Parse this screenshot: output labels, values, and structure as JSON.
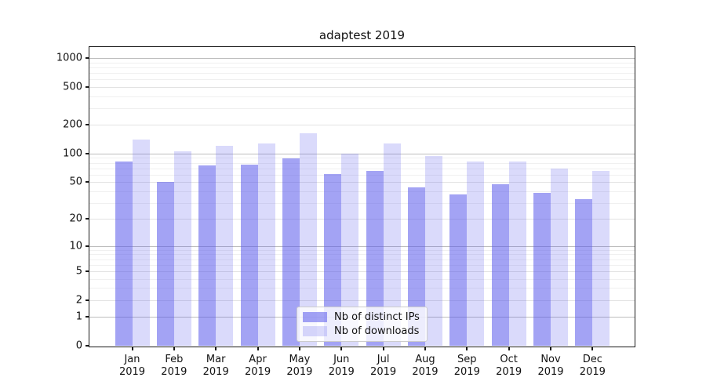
{
  "title": "adaptest 2019",
  "legend": {
    "items": [
      {
        "label": "Nb of distinct IPs"
      },
      {
        "label": "Nb of downloads"
      }
    ]
  },
  "axis": {
    "y_tick_values": [
      0,
      1,
      2,
      5,
      10,
      20,
      50,
      100,
      200,
      500,
      1000
    ],
    "y_major_values": [
      1,
      10,
      100,
      1000
    ]
  },
  "colors": {
    "bar_distinct_ips": "rgba(88,88,235,0.55)",
    "bar_downloads": "rgba(88,88,235,0.22)",
    "grid_major": "#bdbdbd",
    "grid_minor": "#f0f0f0"
  },
  "chart_data": {
    "type": "bar",
    "title": "adaptest 2019",
    "categories": [
      "Jan 2019",
      "Feb 2019",
      "Mar 2019",
      "Apr 2019",
      "May 2019",
      "Jun 2019",
      "Jul 2019",
      "Aug 2019",
      "Sep 2019",
      "Oct 2019",
      "Nov 2019",
      "Dec 2019"
    ],
    "series": [
      {
        "name": "Nb of distinct IPs",
        "color": "rgba(88,88,235,0.55)",
        "values": [
          82,
          50,
          75,
          77,
          89,
          61,
          66,
          44,
          37,
          47,
          38,
          33
        ]
      },
      {
        "name": "Nb of downloads",
        "color": "rgba(88,88,235,0.22)",
        "values": [
          140,
          105,
          121,
          128,
          162,
          99,
          127,
          94,
          82,
          83,
          69,
          66
        ]
      }
    ],
    "xlabel": "",
    "ylabel": "",
    "yscale": "log(value+1)",
    "yticks": [
      0,
      1,
      2,
      5,
      10,
      20,
      50,
      100,
      200,
      500,
      1000
    ],
    "ylim": [
      0,
      1300
    ],
    "grid": "on",
    "legend_position": "lower center"
  }
}
